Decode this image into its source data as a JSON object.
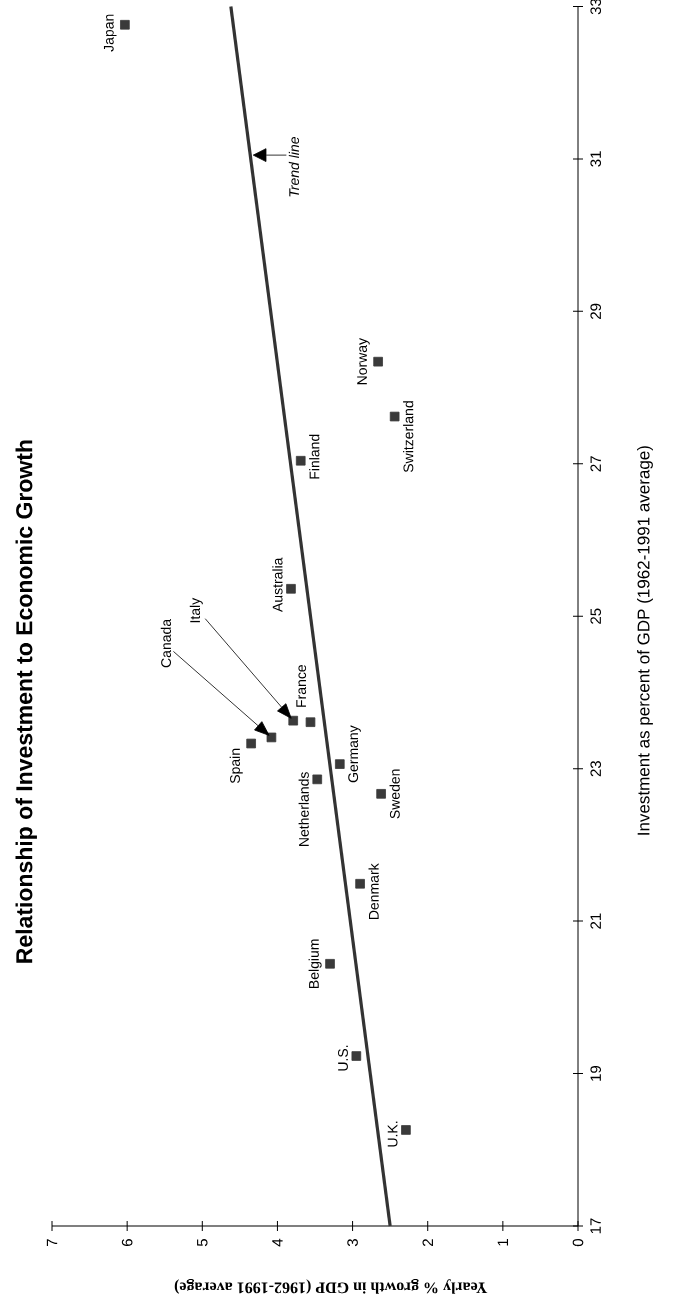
{
  "chart_data": {
    "type": "scatter",
    "title": "Relationship of Investment to Economic Growth",
    "xlabel": "Yearly % growth in GDP (1962-1991 average)",
    "ylabel": "Investment as percent of GDP (1962-1991 average)",
    "xlim": [
      7,
      0
    ],
    "xticks": [
      7,
      6,
      5,
      4,
      3,
      2,
      1,
      0
    ],
    "ylim": [
      17,
      33
    ],
    "yticks": [
      17,
      19,
      21,
      23,
      25,
      27,
      29,
      31,
      33
    ],
    "series": [
      {
        "color": "#3a3a3a",
        "marker": "square",
        "x": [
          6.03,
          2.66,
          2.44,
          3.69,
          3.82,
          3.79,
          3.56,
          4.08,
          4.35,
          3.17,
          3.47,
          2.62,
          2.9,
          3.3,
          2.95,
          2.29
        ],
        "values": [
          32.76,
          28.34,
          27.62,
          27.04,
          25.36,
          23.63,
          23.61,
          23.41,
          23.33,
          23.06,
          22.86,
          22.67,
          21.49,
          20.44,
          19.23,
          18.26
        ]
      },
      {
        "type": "line",
        "color": "#333333",
        "x": [
          2.5,
          4.62
        ],
        "values": [
          17,
          33
        ]
      }
    ],
    "annotations": [
      {
        "text": "Japan",
        "x": 6.03,
        "y": 32.76
      },
      {
        "text": "Norway",
        "x": 2.66,
        "y": 28.34
      },
      {
        "text": "Switzerland",
        "x": 2.44,
        "y": 27.62
      },
      {
        "text": "Finland",
        "x": 3.69,
        "y": 27.04
      },
      {
        "text": "Australia",
        "x": 3.82,
        "y": 25.36
      },
      "Italy",
      {
        "text": "France",
        "x": 3.56,
        "y": 23.61
      },
      "Canada",
      {
        "text": "Spain",
        "x": 4.35,
        "y": 23.33
      },
      {
        "text": "Germany",
        "x": 3.17,
        "y": 23.06
      },
      {
        "text": "Netherlands",
        "x": 3.47,
        "y": 22.86
      },
      {
        "text": "Sweden",
        "x": 2.62,
        "y": 22.67
      },
      {
        "text": "Denmark",
        "x": 2.9,
        "y": 21.49
      },
      {
        "text": "Belgium",
        "x": 3.3,
        "y": 20.44
      },
      {
        "text": "U.S.",
        "x": 2.95,
        "y": 19.23
      },
      {
        "text": "U.K.",
        "x": 2.29,
        "y": 18.26
      },
      {
        "text": "*Trend line*",
        "x": 4.36,
        "y": 31.05
      }
    ]
  }
}
